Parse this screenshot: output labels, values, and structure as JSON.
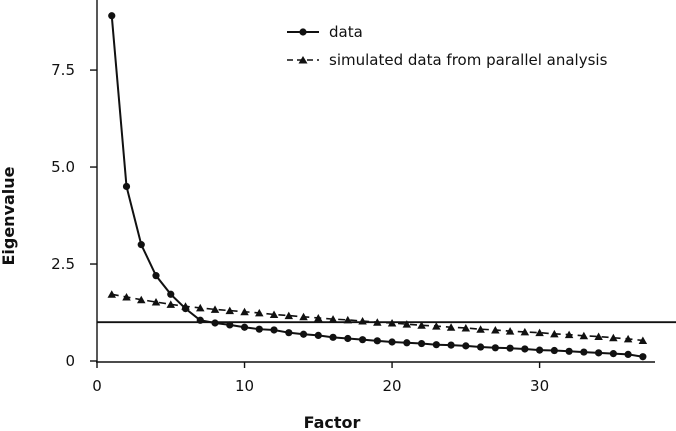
{
  "chart_data": {
    "type": "line",
    "title": "",
    "xlabel": "Factor",
    "ylabel": "Eigenvalue",
    "xlim": [
      0,
      38.5
    ],
    "ylim": [
      0,
      9.1
    ],
    "x_ticks": [
      0,
      10,
      20,
      30
    ],
    "x_tick_labels": [
      "0",
      "10",
      "20",
      "30"
    ],
    "y_ticks": [
      0,
      2.5,
      5.0,
      7.5
    ],
    "y_tick_labels": [
      "0",
      "2.5",
      "5.0",
      "7.5"
    ],
    "reference_line": 1,
    "grid": false,
    "legend_position": "top-right",
    "series": [
      {
        "name": "data",
        "marker": "circle",
        "line_style": "solid",
        "color": "#111111",
        "x": [
          1,
          2,
          3,
          4,
          5,
          6,
          7,
          8,
          9,
          10,
          11,
          12,
          13,
          14,
          15,
          16,
          17,
          18,
          19,
          20,
          21,
          22,
          23,
          24,
          25,
          26,
          27,
          28,
          29,
          30,
          31,
          32,
          33,
          34,
          35,
          36,
          37
        ],
        "values": [
          8.9,
          4.5,
          3.0,
          2.2,
          1.72,
          1.35,
          1.05,
          0.98,
          0.93,
          0.87,
          0.82,
          0.8,
          0.73,
          0.69,
          0.66,
          0.61,
          0.58,
          0.55,
          0.52,
          0.49,
          0.47,
          0.45,
          0.42,
          0.41,
          0.39,
          0.36,
          0.34,
          0.33,
          0.31,
          0.28,
          0.27,
          0.25,
          0.23,
          0.21,
          0.19,
          0.17,
          0.11
        ]
      },
      {
        "name": "simulated data from parallel analysis",
        "marker": "triangle",
        "line_style": "dashed",
        "color": "#111111",
        "x": [
          1,
          2,
          3,
          4,
          5,
          6,
          7,
          8,
          9,
          10,
          11,
          12,
          13,
          14,
          15,
          16,
          17,
          18,
          19,
          20,
          21,
          22,
          23,
          24,
          25,
          26,
          27,
          28,
          29,
          30,
          31,
          32,
          33,
          34,
          35,
          36,
          37
        ],
        "values": [
          1.72,
          1.65,
          1.58,
          1.52,
          1.46,
          1.41,
          1.37,
          1.33,
          1.3,
          1.27,
          1.24,
          1.2,
          1.17,
          1.14,
          1.11,
          1.08,
          1.06,
          1.03,
          1.0,
          0.98,
          0.95,
          0.92,
          0.9,
          0.87,
          0.85,
          0.82,
          0.8,
          0.77,
          0.75,
          0.73,
          0.7,
          0.68,
          0.65,
          0.63,
          0.6,
          0.57,
          0.53
        ]
      }
    ]
  }
}
